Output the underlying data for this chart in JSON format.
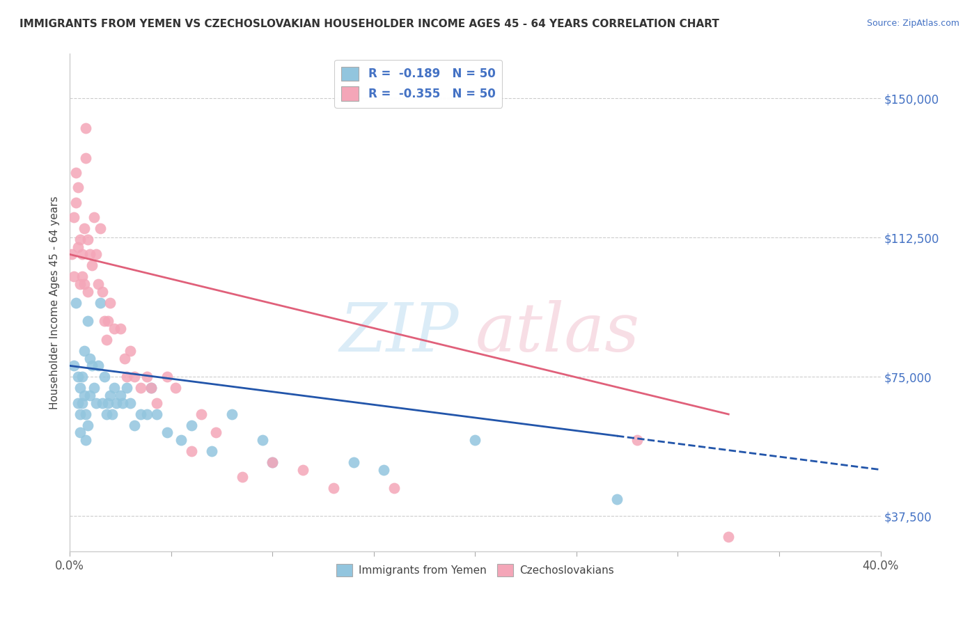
{
  "title": "IMMIGRANTS FROM YEMEN VS CZECHOSLOVAKIAN HOUSEHOLDER INCOME AGES 45 - 64 YEARS CORRELATION CHART",
  "source": "Source: ZipAtlas.com",
  "ylabel": "Householder Income Ages 45 - 64 years",
  "xlim": [
    0.0,
    0.4
  ],
  "ylim": [
    28000,
    162000
  ],
  "yticks": [
    37500,
    75000,
    112500,
    150000
  ],
  "ytick_labels": [
    "$37,500",
    "$75,000",
    "$112,500",
    "$150,000"
  ],
  "xticks": [
    0.0,
    0.05,
    0.1,
    0.15,
    0.2,
    0.25,
    0.3,
    0.35,
    0.4
  ],
  "xtick_labels": [
    "0.0%",
    "",
    "",
    "",
    "",
    "",
    "",
    "",
    "40.0%"
  ],
  "legend_r1": "R =  -0.189   N = 50",
  "legend_r2": "R =  -0.355   N = 50",
  "legend_label1": "Immigrants from Yemen",
  "legend_label2": "Czechoslovakians",
  "color_blue": "#92c5de",
  "color_pink": "#f4a6b8",
  "blue_line_color": "#2255aa",
  "pink_line_color": "#e0607a",
  "blue_scatter_x": [
    0.002,
    0.003,
    0.004,
    0.004,
    0.005,
    0.005,
    0.005,
    0.006,
    0.006,
    0.007,
    0.007,
    0.008,
    0.008,
    0.009,
    0.009,
    0.01,
    0.01,
    0.011,
    0.012,
    0.013,
    0.014,
    0.015,
    0.016,
    0.017,
    0.018,
    0.019,
    0.02,
    0.021,
    0.022,
    0.023,
    0.025,
    0.026,
    0.028,
    0.03,
    0.032,
    0.035,
    0.038,
    0.04,
    0.043,
    0.048,
    0.055,
    0.06,
    0.07,
    0.08,
    0.095,
    0.1,
    0.14,
    0.155,
    0.2,
    0.27
  ],
  "blue_scatter_y": [
    78000,
    95000,
    75000,
    68000,
    72000,
    65000,
    60000,
    68000,
    75000,
    70000,
    82000,
    65000,
    58000,
    90000,
    62000,
    80000,
    70000,
    78000,
    72000,
    68000,
    78000,
    95000,
    68000,
    75000,
    65000,
    68000,
    70000,
    65000,
    72000,
    68000,
    70000,
    68000,
    72000,
    68000,
    62000,
    65000,
    65000,
    72000,
    65000,
    60000,
    58000,
    62000,
    55000,
    65000,
    58000,
    52000,
    52000,
    50000,
    58000,
    42000
  ],
  "pink_scatter_x": [
    0.001,
    0.002,
    0.002,
    0.003,
    0.003,
    0.004,
    0.004,
    0.005,
    0.005,
    0.006,
    0.006,
    0.007,
    0.007,
    0.008,
    0.008,
    0.009,
    0.009,
    0.01,
    0.011,
    0.012,
    0.013,
    0.014,
    0.015,
    0.016,
    0.017,
    0.018,
    0.019,
    0.02,
    0.022,
    0.025,
    0.027,
    0.028,
    0.03,
    0.032,
    0.035,
    0.038,
    0.04,
    0.043,
    0.048,
    0.052,
    0.06,
    0.065,
    0.072,
    0.085,
    0.1,
    0.115,
    0.13,
    0.16,
    0.28,
    0.325
  ],
  "pink_scatter_y": [
    108000,
    118000,
    102000,
    122000,
    130000,
    126000,
    110000,
    112000,
    100000,
    102000,
    108000,
    100000,
    115000,
    142000,
    134000,
    112000,
    98000,
    108000,
    105000,
    118000,
    108000,
    100000,
    115000,
    98000,
    90000,
    85000,
    90000,
    95000,
    88000,
    88000,
    80000,
    75000,
    82000,
    75000,
    72000,
    75000,
    72000,
    68000,
    75000,
    72000,
    55000,
    65000,
    60000,
    48000,
    52000,
    50000,
    45000,
    45000,
    58000,
    32000
  ]
}
